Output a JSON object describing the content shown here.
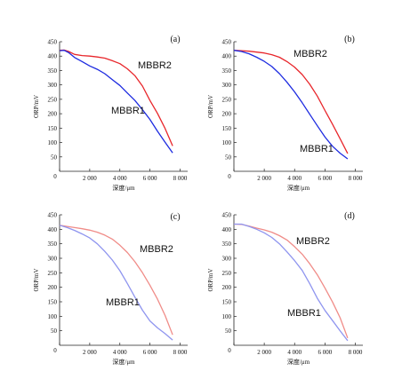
{
  "chart_data": [
    {
      "type": "line",
      "panel_label": "(a)",
      "xlabel": "深度/μm",
      "ylabel": "ORP/mV",
      "xlim": [
        0,
        8500
      ],
      "ylim": [
        0,
        450
      ],
      "xticks": [
        0,
        2000,
        4000,
        6000,
        8000
      ],
      "xtick_labels": [
        "0",
        "2 000",
        "4 000",
        "6 000",
        "8 000"
      ],
      "yticks": [
        50,
        100,
        150,
        200,
        250,
        300,
        350,
        400,
        450
      ],
      "ytick_labels": [
        "50",
        "100",
        "150",
        "200",
        "250",
        "300",
        "350",
        "400",
        "450"
      ],
      "series": [
        {
          "name": "MBBR2",
          "color": "#e8262b",
          "x": [
            0,
            300,
            600,
            1000,
            1500,
            2000,
            2500,
            3000,
            3500,
            4000,
            4500,
            5000,
            5500,
            6000,
            6500,
            7000,
            7500
          ],
          "y": [
            420,
            421,
            416,
            406,
            402,
            400,
            397,
            393,
            384,
            374,
            356,
            332,
            296,
            246,
            201,
            149,
            88
          ]
        },
        {
          "name": "MBBR1",
          "color": "#1d2be0",
          "x": [
            0,
            300,
            600,
            1000,
            1500,
            2000,
            2500,
            3000,
            3500,
            4000,
            4500,
            5000,
            5500,
            6000,
            6500,
            7000,
            7500
          ],
          "y": [
            419,
            420,
            412,
            395,
            381,
            366,
            354,
            339,
            318,
            298,
            272,
            246,
            214,
            180,
            139,
            101,
            64
          ]
        }
      ]
    },
    {
      "type": "line",
      "panel_label": "(b)",
      "xlabel": "深度/μm",
      "ylabel": "ORP/mV",
      "xlim": [
        0,
        8500
      ],
      "ylim": [
        0,
        450
      ],
      "xticks": [
        0,
        2000,
        4000,
        6000,
        8000
      ],
      "xtick_labels": [
        "0",
        "2 000",
        "4 000",
        "6 000",
        "8 000"
      ],
      "yticks": [
        50,
        100,
        150,
        200,
        250,
        300,
        350,
        400,
        450
      ],
      "ytick_labels": [
        "50",
        "100",
        "150",
        "200",
        "250",
        "300",
        "350",
        "400",
        "450"
      ],
      "series": [
        {
          "name": "MBBR2",
          "color": "#e8262b",
          "x": [
            0,
            500,
            1000,
            1500,
            2000,
            2500,
            3000,
            3500,
            4000,
            4500,
            5000,
            5500,
            6000,
            6500,
            7000,
            7500
          ],
          "y": [
            420,
            419,
            417,
            414,
            411,
            405,
            396,
            381,
            362,
            336,
            302,
            261,
            211,
            163,
            113,
            62
          ]
        },
        {
          "name": "MBBR1",
          "color": "#1d2be0",
          "x": [
            0,
            500,
            1000,
            1500,
            2000,
            2500,
            3000,
            3500,
            4000,
            4500,
            5000,
            5500,
            6000,
            6500,
            7000,
            7500
          ],
          "y": [
            420,
            416,
            408,
            396,
            382,
            364,
            339,
            309,
            276,
            238,
            198,
            158,
            119,
            87,
            63,
            43
          ]
        }
      ]
    },
    {
      "type": "line",
      "panel_label": "(c)",
      "xlabel": "深度/μm",
      "ylabel": "ORP/mV",
      "xlim": [
        0,
        8500
      ],
      "ylim": [
        0,
        450
      ],
      "xticks": [
        0,
        2000,
        4000,
        6000,
        8000
      ],
      "xtick_labels": [
        "0",
        "2 000",
        "4 000",
        "6 000",
        "8 000"
      ],
      "yticks": [
        50,
        100,
        150,
        200,
        250,
        300,
        350,
        400,
        450
      ],
      "ytick_labels": [
        "50",
        "100",
        "150",
        "200",
        "250",
        "300",
        "350",
        "400",
        "450"
      ],
      "series": [
        {
          "name": "MBBR2",
          "color": "#f08c88",
          "x": [
            0,
            500,
            1000,
            1500,
            2000,
            2500,
            3000,
            3500,
            4000,
            4500,
            5000,
            5500,
            6000,
            6500,
            7000,
            7500
          ],
          "y": [
            414,
            410,
            406,
            402,
            397,
            390,
            380,
            366,
            345,
            320,
            288,
            250,
            207,
            159,
            103,
            36
          ]
        },
        {
          "name": "MBBR1",
          "color": "#8f95ef",
          "x": [
            0,
            500,
            1000,
            1500,
            2000,
            2500,
            3000,
            3500,
            4000,
            4500,
            5000,
            5500,
            6000,
            6500,
            7000,
            7500
          ],
          "y": [
            414,
            406,
            396,
            384,
            370,
            350,
            324,
            294,
            257,
            213,
            166,
            121,
            84,
            60,
            40,
            18
          ]
        }
      ]
    },
    {
      "type": "line",
      "panel_label": "(d)",
      "xlabel": "深度/μm",
      "ylabel": "ORP/mV",
      "xlim": [
        0,
        8500
      ],
      "ylim": [
        0,
        450
      ],
      "xticks": [
        0,
        2000,
        4000,
        6000,
        8000
      ],
      "xtick_labels": [
        "0",
        "2 000",
        "4 000",
        "6 000",
        "8 000"
      ],
      "yticks": [
        50,
        100,
        150,
        200,
        250,
        300,
        350,
        400,
        450
      ],
      "ytick_labels": [
        "50",
        "100",
        "150",
        "200",
        "250",
        "300",
        "350",
        "400",
        "450"
      ],
      "series": [
        {
          "name": "MBBR2",
          "color": "#f08c88",
          "x": [
            0,
            500,
            1000,
            1500,
            2000,
            2500,
            3000,
            3500,
            4000,
            4500,
            5000,
            5500,
            6000,
            6500,
            7000,
            7500
          ],
          "y": [
            418,
            417,
            411,
            404,
            398,
            390,
            378,
            363,
            340,
            314,
            281,
            243,
            197,
            149,
            95,
            25
          ]
        },
        {
          "name": "MBBR1",
          "color": "#8f95ef",
          "x": [
            0,
            500,
            1000,
            1500,
            2000,
            2500,
            3000,
            3500,
            4000,
            4500,
            5000,
            5500,
            6000,
            6500,
            7000,
            7500
          ],
          "y": [
            418,
            418,
            410,
            400,
            388,
            372,
            350,
            322,
            292,
            258,
            212,
            162,
            120,
            85,
            50,
            16
          ]
        }
      ]
    }
  ]
}
